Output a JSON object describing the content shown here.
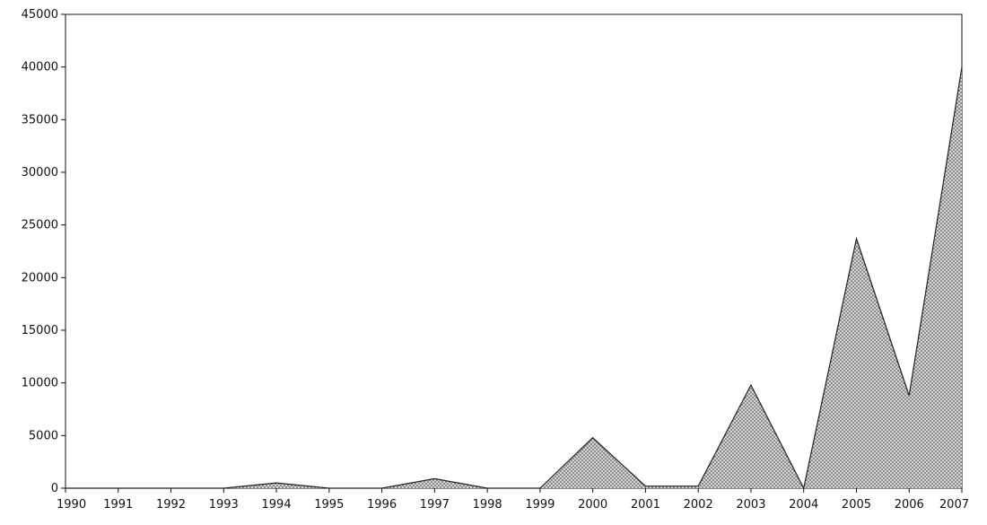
{
  "chart_data": {
    "type": "area",
    "title": "",
    "xlabel": "",
    "ylabel": "",
    "x": [
      "1990",
      "1991",
      "1992",
      "1993",
      "1994",
      "1995",
      "1996",
      "1997",
      "1998",
      "1999",
      "2000",
      "2001",
      "2002",
      "2003",
      "2004",
      "2005",
      "2006",
      "2007"
    ],
    "values": [
      0,
      0,
      0,
      0,
      500,
      0,
      0,
      900,
      0,
      0,
      4800,
      200,
      200,
      9800,
      0,
      23700,
      8800,
      40000
    ],
    "ylim": [
      0,
      45000
    ],
    "yticks": [
      "0",
      "5000",
      "10000",
      "15000",
      "20000",
      "25000",
      "30000",
      "35000",
      "40000",
      "45000"
    ],
    "grid": false,
    "legend": "none",
    "fill_pattern": "dotted-gray",
    "colors": {
      "fill": "#9a9a9a",
      "stroke": "#222222",
      "axis": "#111111"
    }
  }
}
